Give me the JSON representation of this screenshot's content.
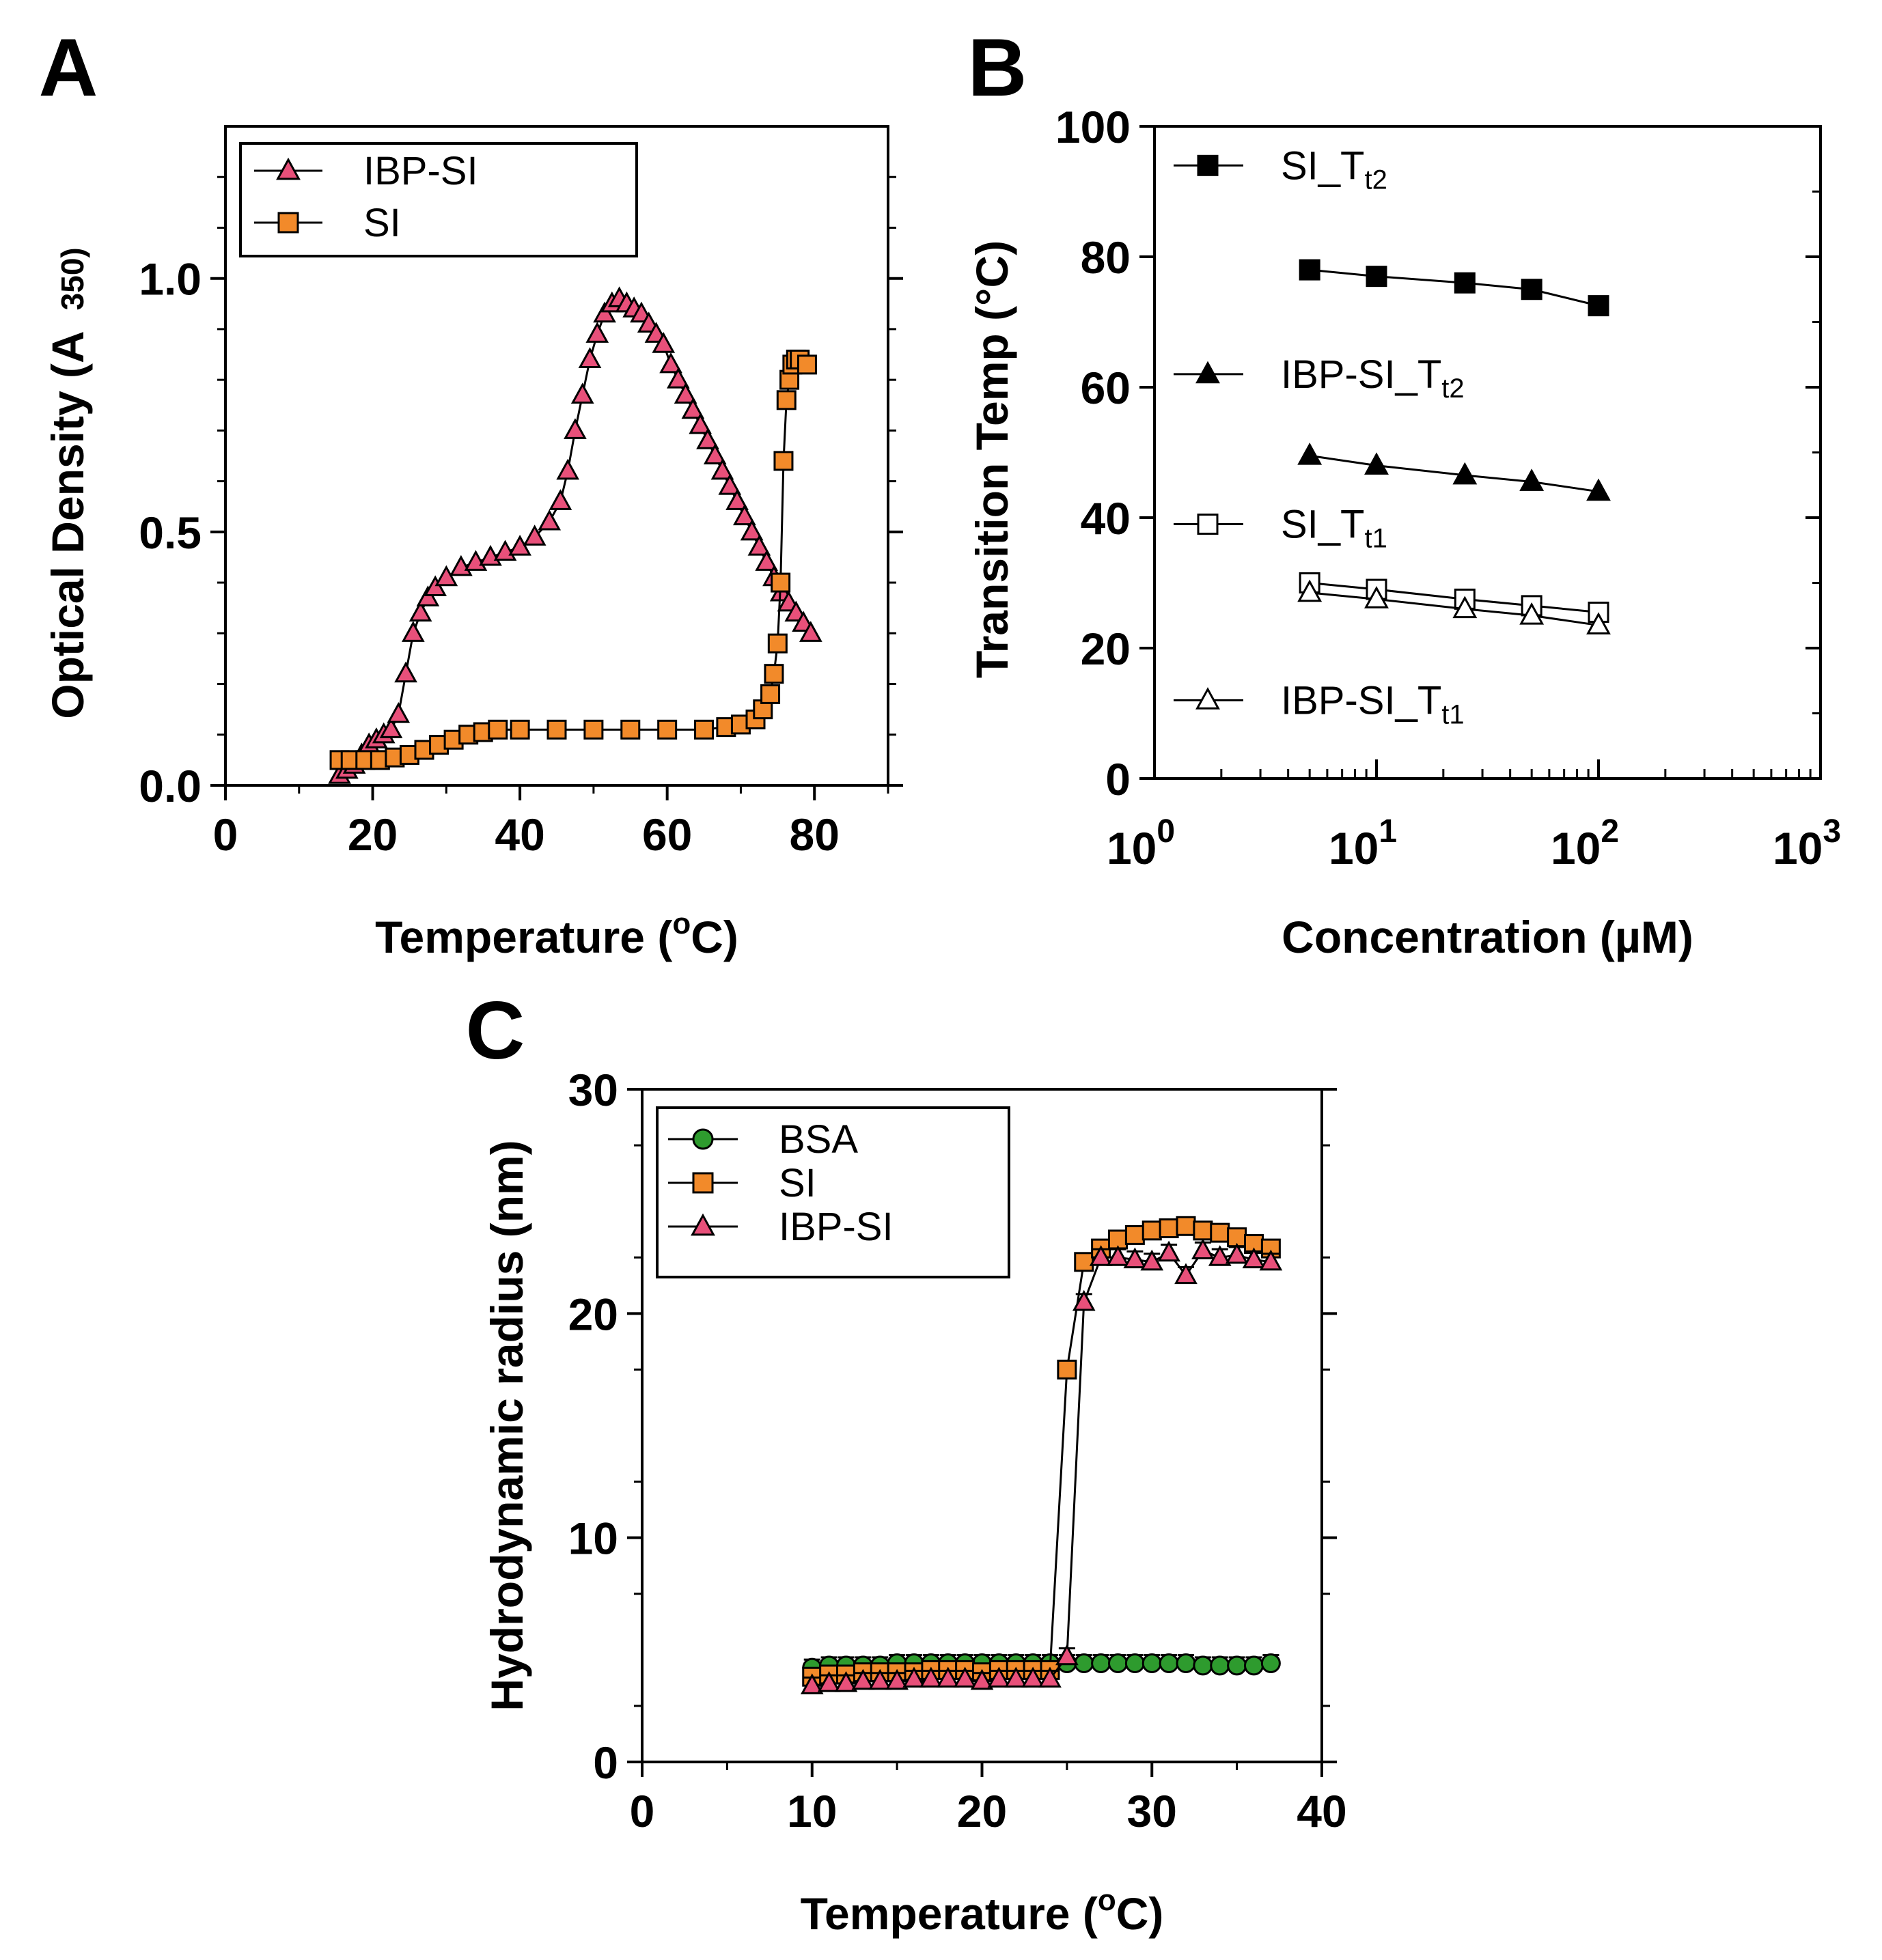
{
  "chart_data": [
    {
      "panel": "A",
      "type": "scatter",
      "xlabel": "Temperature (oC)",
      "xlabel_parts": {
        "before": "Temperature (",
        "sup": "o",
        "after": "C)"
      },
      "ylabel": "Optical Density (A 350)",
      "ylabel_parts": {
        "main": "Optical Density (A",
        "sub": "350)"
      },
      "xlim": [
        0,
        90
      ],
      "ylim": [
        0,
        1.3
      ],
      "xticks": [
        0,
        20,
        40,
        60,
        80
      ],
      "xtick_labels": [
        "0",
        "20",
        "40",
        "60",
        "80"
      ],
      "yticks": [
        0,
        0.5,
        1.0
      ],
      "ytick_labels": [
        "0.0",
        "0.5",
        "1.0"
      ],
      "legend_position": "top-left",
      "series": [
        {
          "name": "IBP-SI",
          "marker": "triangle",
          "color": "#e8507a",
          "line": "#000000",
          "x": [
            15.5,
            16.5,
            17.5,
            18.5,
            19.5,
            20.5,
            21.5,
            22.5,
            23.5,
            24.5,
            25.5,
            26.5,
            27.5,
            28.5,
            30,
            32,
            34,
            36,
            38,
            40,
            42,
            44,
            45.5,
            46.5,
            47.5,
            48.5,
            49.5,
            50.5,
            51.5,
            52.5,
            53.5,
            54.5,
            55.5,
            56.5,
            57.5,
            58.5,
            59.5,
            60.5,
            61.5,
            62.5,
            63.5,
            64.5,
            65.5,
            66.5,
            67.5,
            68.5,
            69.5,
            70.5,
            71.5,
            72.5,
            73.5,
            74.5,
            75.5,
            76.5,
            77.5,
            78.5,
            79.5
          ],
          "y": [
            0.02,
            0.03,
            0.04,
            0.06,
            0.08,
            0.09,
            0.1,
            0.11,
            0.14,
            0.22,
            0.3,
            0.34,
            0.37,
            0.39,
            0.41,
            0.43,
            0.44,
            0.45,
            0.46,
            0.47,
            0.49,
            0.52,
            0.56,
            0.62,
            0.7,
            0.77,
            0.84,
            0.89,
            0.93,
            0.95,
            0.96,
            0.95,
            0.94,
            0.93,
            0.91,
            0.89,
            0.87,
            0.83,
            0.8,
            0.77,
            0.74,
            0.71,
            0.68,
            0.65,
            0.62,
            0.59,
            0.56,
            0.53,
            0.5,
            0.47,
            0.44,
            0.41,
            0.38,
            0.36,
            0.34,
            0.32,
            0.3
          ]
        },
        {
          "name": "SI",
          "marker": "square",
          "color": "#f28a2a",
          "line": "#000000",
          "x": [
            15.5,
            17,
            19,
            21,
            23,
            25,
            27,
            29,
            31,
            33,
            35,
            37,
            40,
            45,
            50,
            55,
            60,
            65,
            68,
            70,
            72,
            73,
            74,
            74.5,
            75,
            75.4,
            75.8,
            76.2,
            76.6,
            77,
            77.5,
            78,
            79
          ],
          "y": [
            0.05,
            0.05,
            0.05,
            0.05,
            0.055,
            0.06,
            0.07,
            0.08,
            0.09,
            0.1,
            0.105,
            0.11,
            0.11,
            0.11,
            0.11,
            0.11,
            0.11,
            0.11,
            0.115,
            0.12,
            0.13,
            0.15,
            0.18,
            0.22,
            0.28,
            0.4,
            0.64,
            0.76,
            0.8,
            0.83,
            0.84,
            0.84,
            0.83
          ]
        }
      ]
    },
    {
      "panel": "B",
      "type": "line",
      "xscale": "log",
      "xlabel": "Concentration (µM)",
      "ylabel": "Transition Temp (°C)",
      "xlim": [
        1,
        1000
      ],
      "ylim": [
        0,
        100
      ],
      "xtick_labels": [
        {
          "base": "10",
          "exp": "0"
        },
        {
          "base": "10",
          "exp": "1"
        },
        {
          "base": "10",
          "exp": "2"
        },
        {
          "base": "10",
          "exp": "3"
        }
      ],
      "ytick_labels": [
        "0",
        "20",
        "40",
        "60",
        "80",
        "100"
      ],
      "yticks": [
        0,
        20,
        40,
        60,
        80,
        100
      ],
      "legend_position": "left-inside",
      "series": [
        {
          "name": "SI_Tt2",
          "label_main": "SI_T",
          "label_sub": "t2",
          "marker": "square-filled",
          "x": [
            5,
            10,
            25,
            50,
            100
          ],
          "y": [
            78,
            77,
            76,
            75,
            72.5
          ],
          "label_y": 94
        },
        {
          "name": "IBP-SI_Tt2",
          "label_main": "IBP-SI_T",
          "label_sub": "t2",
          "marker": "triangle-filled",
          "x": [
            5,
            10,
            25,
            50,
            100
          ],
          "y": [
            49.5,
            48,
            46.5,
            45.5,
            44
          ],
          "label_y": 62
        },
        {
          "name": "SI_Tt1",
          "label_main": "SI_T",
          "label_sub": "t1",
          "marker": "square-open",
          "x": [
            5,
            10,
            25,
            50,
            100
          ],
          "y": [
            30,
            29,
            27.5,
            26.5,
            25.5
          ],
          "label_y": 39
        },
        {
          "name": "IBP-SI_Tt1",
          "label_main": "IBP-SI_T",
          "label_sub": "t1",
          "marker": "triangle-open",
          "x": [
            5,
            10,
            25,
            50,
            100
          ],
          "y": [
            28.5,
            27.5,
            26,
            25,
            23.5
          ],
          "label_y": 12
        }
      ]
    },
    {
      "panel": "C",
      "type": "scatter",
      "xlabel": "Temperature (oC)",
      "xlabel_parts": {
        "before": "Temperature (",
        "sup": "o",
        "after": "C)"
      },
      "ylabel": "Hydrodynamic radius (nm)",
      "xlim": [
        0,
        40
      ],
      "ylim": [
        0,
        30
      ],
      "xticks": [
        0,
        10,
        20,
        30,
        40
      ],
      "xtick_labels": [
        "0",
        "10",
        "20",
        "30",
        "40"
      ],
      "yticks": [
        0,
        10,
        20,
        30
      ],
      "ytick_labels": [
        "0",
        "10",
        "20",
        "30"
      ],
      "legend_position": "top-left",
      "series": [
        {
          "name": "BSA",
          "marker": "circle",
          "color": "#2e9b2e",
          "line": "#000000",
          "x": [
            10,
            11,
            12,
            13,
            14,
            15,
            16,
            17,
            18,
            19,
            20,
            21,
            22,
            23,
            24,
            25,
            26,
            27,
            28,
            29,
            30,
            31,
            32,
            33,
            34,
            35,
            36,
            37
          ],
          "y": [
            4.2,
            4.3,
            4.3,
            4.3,
            4.3,
            4.4,
            4.4,
            4.4,
            4.4,
            4.4,
            4.4,
            4.4,
            4.4,
            4.4,
            4.4,
            4.4,
            4.4,
            4.4,
            4.4,
            4.4,
            4.4,
            4.4,
            4.4,
            4.3,
            4.3,
            4.3,
            4.3,
            4.4
          ]
        },
        {
          "name": "SI",
          "marker": "square",
          "color": "#f28a2a",
          "line": "#000000",
          "x": [
            10,
            11,
            12,
            13,
            14,
            15,
            16,
            17,
            18,
            19,
            20,
            21,
            22,
            23,
            24,
            25,
            26,
            27,
            28,
            29,
            30,
            31,
            32,
            33,
            34,
            35,
            36,
            37
          ],
          "y": [
            3.8,
            3.9,
            3.9,
            4.0,
            4.0,
            4.0,
            4.0,
            4.1,
            4.1,
            4.1,
            4.0,
            4.1,
            4.1,
            4.1,
            4.1,
            17.5,
            22.3,
            22.9,
            23.3,
            23.5,
            23.7,
            23.8,
            23.9,
            23.7,
            23.6,
            23.4,
            23.1,
            22.9
          ]
        },
        {
          "name": "IBP-SI",
          "marker": "triangle",
          "color": "#e8507a",
          "line": "#000000",
          "x": [
            10,
            11,
            12,
            13,
            14,
            15,
            16,
            17,
            18,
            19,
            20,
            21,
            22,
            23,
            24,
            25,
            26,
            27,
            28,
            29,
            30,
            31,
            32,
            33,
            34,
            35,
            36,
            37
          ],
          "y": [
            3.4,
            3.5,
            3.5,
            3.6,
            3.6,
            3.6,
            3.7,
            3.7,
            3.7,
            3.7,
            3.6,
            3.7,
            3.7,
            3.7,
            3.7,
            4.7,
            20.5,
            22.5,
            22.5,
            22.4,
            22.3,
            22.7,
            21.7,
            22.8,
            22.5,
            22.6,
            22.4,
            22.3
          ]
        }
      ]
    }
  ]
}
